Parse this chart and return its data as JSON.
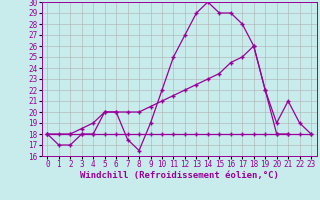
{
  "xlabel": "Windchill (Refroidissement éolien,°C)",
  "background_color": "#c8ecec",
  "line_color": "#990099",
  "grid_color": "#b0b0b0",
  "xlim": [
    -0.5,
    23.5
  ],
  "ylim": [
    16,
    30
  ],
  "xticks": [
    0,
    1,
    2,
    3,
    4,
    5,
    6,
    7,
    8,
    9,
    10,
    11,
    12,
    13,
    14,
    15,
    16,
    17,
    18,
    19,
    20,
    21,
    22,
    23
  ],
  "yticks": [
    16,
    17,
    18,
    19,
    20,
    21,
    22,
    23,
    24,
    25,
    26,
    27,
    28,
    29,
    30
  ],
  "line1_x": [
    0,
    1,
    2,
    3,
    4,
    5,
    6,
    7,
    8,
    9,
    10,
    11,
    12,
    13,
    14,
    15,
    16,
    17,
    18,
    19,
    20,
    21
  ],
  "line1_y": [
    18,
    17,
    17,
    18,
    18,
    20,
    20,
    17.5,
    16.5,
    19,
    22,
    25,
    27,
    29,
    30,
    29,
    29,
    28,
    26,
    22,
    18,
    18
  ],
  "line2_x": [
    0,
    1,
    2,
    3,
    4,
    5,
    6,
    7,
    8,
    9,
    10,
    11,
    12,
    13,
    14,
    15,
    16,
    17,
    18,
    19,
    20,
    21,
    22,
    23
  ],
  "line2_y": [
    18,
    18,
    18,
    18,
    18,
    18,
    18,
    18,
    18,
    18,
    18,
    18,
    18,
    18,
    18,
    18,
    18,
    18,
    18,
    18,
    18,
    18,
    18,
    18
  ],
  "line3_x": [
    0,
    2,
    3,
    4,
    5,
    6,
    7,
    8,
    9,
    10,
    11,
    12,
    13,
    14,
    15,
    16,
    17,
    18,
    19,
    20,
    21,
    22,
    23
  ],
  "line3_y": [
    18,
    18,
    18.5,
    19,
    20,
    20,
    20,
    20,
    20.5,
    21,
    21.5,
    22,
    22.5,
    23,
    23.5,
    24.5,
    25,
    26,
    22,
    19,
    21,
    19,
    18
  ],
  "font_size_tick": 5.5,
  "font_size_label": 6.5,
  "marker": "+"
}
